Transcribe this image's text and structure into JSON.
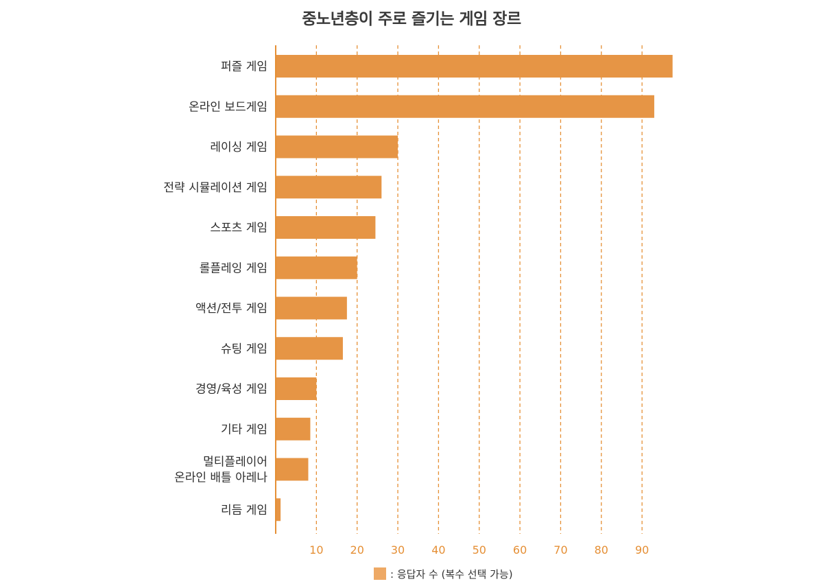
{
  "chart_data": {
    "type": "bar",
    "orientation": "horizontal",
    "title": "중노년층이 주로 즐기는 게임 장르",
    "categories": [
      "퍼즐 게임",
      "온라인 보드게임",
      "레이싱 게임",
      "전략 시뮬레이션 게임",
      "스포츠 게임",
      "롤플레잉 게임",
      "액션/전투 게임",
      "슈팅 게임",
      "경영/육성 게임",
      "기타 게임",
      "멀티플레이어\n온라인 배틀 아레나",
      "리듬 게임"
    ],
    "values": [
      97.5,
      93,
      30,
      26,
      24.5,
      20,
      17.5,
      16.5,
      10,
      8.5,
      8,
      1.2
    ],
    "xticks": [
      10,
      20,
      30,
      40,
      50,
      60,
      70,
      80,
      90
    ],
    "xlim": [
      0,
      100
    ],
    "grid": "vertical dashed",
    "legend": {
      "label": ": 응답자 수 (복수 선택 가능)",
      "position": "bottom-center"
    },
    "colors": {
      "bar": "#e69545",
      "axis": "#e58f35",
      "grid": "#e58f35",
      "tick_text": "#e58f35",
      "legend_swatch": "#eea965"
    }
  }
}
